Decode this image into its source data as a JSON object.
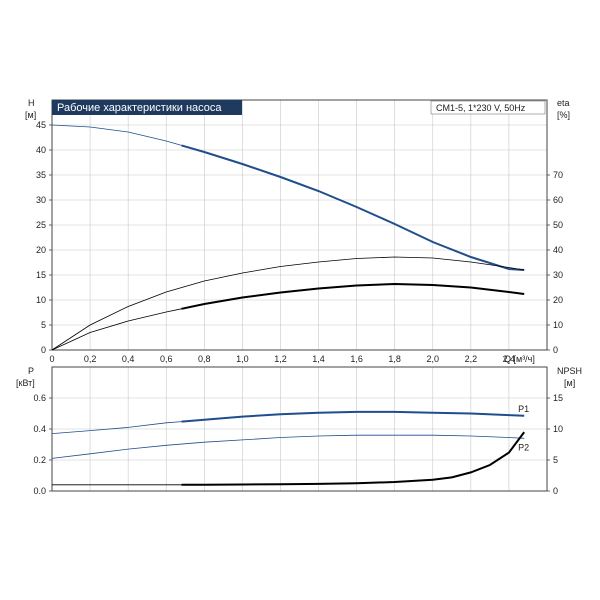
{
  "header": {
    "title": "Рабочие характеристики насоса",
    "model": "CM1-5, 1*230 V, 50Hz"
  },
  "colors": {
    "title_bg": "#1f3a5f",
    "blue_curve": "#1f4e8c",
    "black_curve": "#000000"
  },
  "chart_data": [
    {
      "type": "line",
      "name": "top",
      "x_unit": "Q [м³/ч]",
      "x_ticks": [
        "0",
        "0,2",
        "0,4",
        "0,6",
        "0,8",
        "1,0",
        "1,2",
        "1,4",
        "1,6",
        "1,8",
        "2,0",
        "2,2",
        "2,4"
      ],
      "xlim": [
        0,
        2.6
      ],
      "y_left": {
        "symbol": "H",
        "unit": "[м]",
        "lim": [
          0,
          50
        ],
        "ticks": [
          "0",
          "5",
          "10",
          "15",
          "20",
          "25",
          "30",
          "35",
          "40",
          "45"
        ]
      },
      "y_right": {
        "symbol": "eta",
        "unit": "[%]",
        "lim": [
          0,
          100
        ],
        "ticks": [
          "0",
          "10",
          "20",
          "30",
          "40",
          "50",
          "60",
          "70"
        ]
      },
      "grid": true,
      "series": [
        {
          "axis": "left",
          "color": "#1f4e8c",
          "op_start": 0.68,
          "points": [
            [
              0,
              45.0
            ],
            [
              0.2,
              44.6
            ],
            [
              0.4,
              43.6
            ],
            [
              0.6,
              41.8
            ],
            [
              0.8,
              39.6
            ],
            [
              1.0,
              37.2
            ],
            [
              1.2,
              34.6
            ],
            [
              1.4,
              31.8
            ],
            [
              1.6,
              28.6
            ],
            [
              1.8,
              25.2
            ],
            [
              2.0,
              21.6
            ],
            [
              2.2,
              18.6
            ],
            [
              2.4,
              16.2
            ],
            [
              2.48,
              16.0
            ]
          ]
        },
        {
          "axis": "right",
          "color": "#000000",
          "op_start": 2.6,
          "points": [
            [
              0,
              0
            ],
            [
              0.2,
              10
            ],
            [
              0.4,
              17.4
            ],
            [
              0.6,
              23.2
            ],
            [
              0.8,
              27.6
            ],
            [
              1.0,
              30.8
            ],
            [
              1.2,
              33.4
            ],
            [
              1.4,
              35.2
            ],
            [
              1.6,
              36.6
            ],
            [
              1.8,
              37.2
            ],
            [
              2.0,
              36.8
            ],
            [
              2.2,
              35.2
            ],
            [
              2.4,
              33.0
            ],
            [
              2.48,
              32.0
            ]
          ]
        },
        {
          "axis": "left",
          "color": "#000000",
          "op_start": 0.68,
          "points": [
            [
              0,
              0
            ],
            [
              0.2,
              3.5
            ],
            [
              0.4,
              5.8
            ],
            [
              0.6,
              7.6
            ],
            [
              0.8,
              9.2
            ],
            [
              1.0,
              10.5
            ],
            [
              1.2,
              11.5
            ],
            [
              1.4,
              12.3
            ],
            [
              1.6,
              12.9
            ],
            [
              1.8,
              13.2
            ],
            [
              2.0,
              13.0
            ],
            [
              2.2,
              12.5
            ],
            [
              2.4,
              11.6
            ],
            [
              2.48,
              11.2
            ]
          ]
        }
      ]
    },
    {
      "type": "line",
      "name": "bottom",
      "xlim": [
        0,
        2.6
      ],
      "y_left": {
        "symbol": "P",
        "unit": "[кВт]",
        "lim": [
          0,
          0.8
        ],
        "ticks": [
          "0.0",
          "0.2",
          "0.4",
          "0.6"
        ]
      },
      "y_right": {
        "symbol": "NPSH",
        "unit": "[м]",
        "lim": [
          0,
          20
        ],
        "ticks": [
          "0",
          "5",
          "10",
          "15"
        ]
      },
      "grid": true,
      "series": [
        {
          "label": "P1",
          "axis": "left",
          "color": "#1f4e8c",
          "op_start": 0.68,
          "points": [
            [
              0,
              0.37
            ],
            [
              0.2,
              0.39
            ],
            [
              0.4,
              0.41
            ],
            [
              0.6,
              0.44
            ],
            [
              0.8,
              0.46
            ],
            [
              1.0,
              0.48
            ],
            [
              1.2,
              0.495
            ],
            [
              1.4,
              0.505
            ],
            [
              1.6,
              0.51
            ],
            [
              1.8,
              0.51
            ],
            [
              2.0,
              0.505
            ],
            [
              2.2,
              0.5
            ],
            [
              2.4,
              0.49
            ],
            [
              2.48,
              0.485
            ]
          ]
        },
        {
          "label": "P2",
          "axis": "left",
          "color": "#1f4e8c",
          "op_start": 2.6,
          "points": [
            [
              0,
              0.21
            ],
            [
              0.2,
              0.24
            ],
            [
              0.4,
              0.27
            ],
            [
              0.6,
              0.295
            ],
            [
              0.8,
              0.315
            ],
            [
              1.0,
              0.33
            ],
            [
              1.2,
              0.345
            ],
            [
              1.4,
              0.355
            ],
            [
              1.6,
              0.36
            ],
            [
              1.8,
              0.36
            ],
            [
              2.0,
              0.36
            ],
            [
              2.2,
              0.355
            ],
            [
              2.4,
              0.345
            ],
            [
              2.48,
              0.34
            ]
          ]
        },
        {
          "axis": "right",
          "color": "#000000",
          "op_start": 0.68,
          "points": [
            [
              0,
              1.0
            ],
            [
              0.6,
              1.0
            ],
            [
              0.8,
              1.0
            ],
            [
              1.0,
              1.05
            ],
            [
              1.2,
              1.1
            ],
            [
              1.4,
              1.15
            ],
            [
              1.6,
              1.25
            ],
            [
              1.8,
              1.45
            ],
            [
              2.0,
              1.8
            ],
            [
              2.1,
              2.2
            ],
            [
              2.2,
              3.0
            ],
            [
              2.3,
              4.2
            ],
            [
              2.4,
              6.2
            ],
            [
              2.48,
              9.5
            ]
          ]
        }
      ]
    }
  ]
}
